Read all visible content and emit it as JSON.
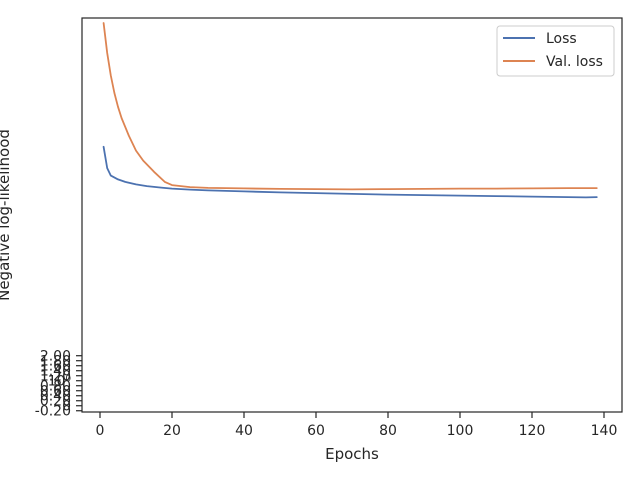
{
  "chart_data": {
    "type": "line",
    "title": "",
    "xlabel": "Epochs",
    "ylabel": "Negative log-likelihood",
    "xlim": [
      -5,
      145
    ],
    "ylim": [
      -0.25,
      15.5
    ],
    "xticks": [
      0,
      20,
      40,
      60,
      80,
      100,
      120,
      140
    ],
    "xtick_labels": [
      "0",
      "20",
      "40",
      "60",
      "80",
      "100",
      "120",
      "140"
    ],
    "yticks": [
      -0.2,
      0,
      0.2,
      0.4,
      0.6,
      0.8,
      1,
      1.2,
      1.4,
      1.6,
      1.8,
      2.0
    ],
    "ytick_labels": [
      "-0.20",
      "0",
      "0.20",
      "0.40",
      "0.60",
      "0.80",
      "10⁰",
      "1.20",
      "1.40",
      "1.60",
      "1.80",
      "2.00"
    ],
    "grid": false,
    "legend": "top-right",
    "colors": {
      "Loss": "#4c72b0",
      "Val. loss": "#dd8452"
    },
    "series": [
      {
        "name": "Loss",
        "x": [
          1,
          2,
          3,
          5,
          7,
          10,
          13,
          17,
          20,
          25,
          30,
          40,
          50,
          60,
          70,
          80,
          90,
          100,
          110,
          120,
          130,
          135,
          138
        ],
        "values": [
          10.35,
          9.5,
          9.2,
          9.05,
          8.95,
          8.85,
          8.78,
          8.72,
          8.68,
          8.64,
          8.61,
          8.57,
          8.53,
          8.5,
          8.47,
          8.44,
          8.42,
          8.4,
          8.38,
          8.36,
          8.34,
          8.33,
          8.34
        ]
      },
      {
        "name": "Val. loss",
        "x": [
          1,
          2,
          3,
          4,
          5,
          6,
          8,
          10,
          12,
          15,
          18,
          20,
          25,
          30,
          40,
          50,
          60,
          70,
          80,
          90,
          100,
          110,
          120,
          130,
          138
        ],
        "values": [
          15.3,
          14.1,
          13.2,
          12.5,
          11.95,
          11.5,
          10.8,
          10.2,
          9.8,
          9.35,
          8.95,
          8.82,
          8.74,
          8.71,
          8.69,
          8.67,
          8.66,
          8.65,
          8.66,
          8.67,
          8.68,
          8.68,
          8.69,
          8.7,
          8.7
        ]
      }
    ]
  }
}
